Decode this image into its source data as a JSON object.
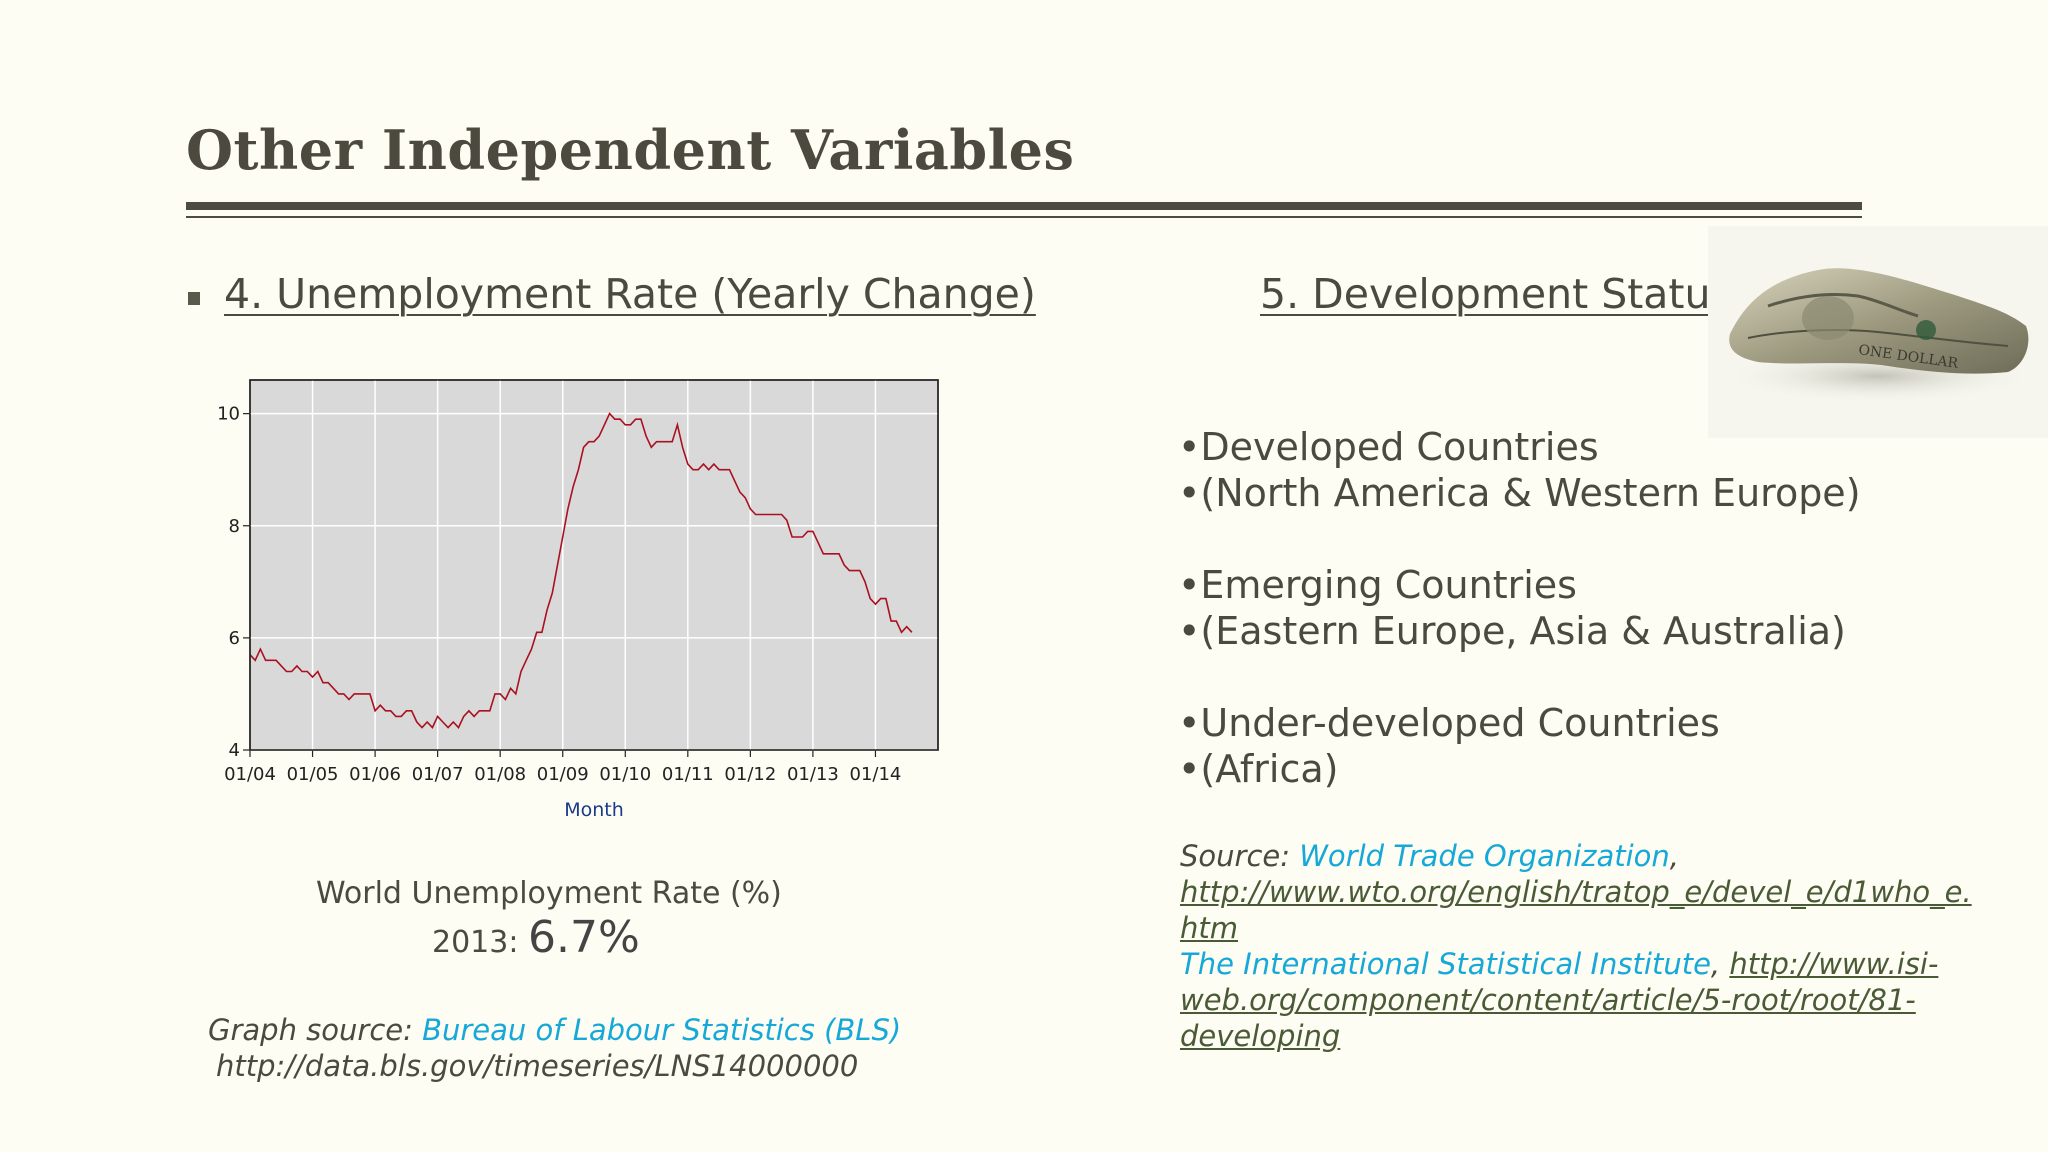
{
  "slide": {
    "title": "Other Independent Variables"
  },
  "left": {
    "heading": "4.  Unemployment Rate (Yearly Change)",
    "caption_line1": "World Unemployment Rate (%)",
    "caption_year": "2013: ",
    "caption_value": "6.7%",
    "source_label": "Graph source: ",
    "source_link": "Bureau of Labour Statistics (BLS)",
    "source_url": "http://data.bls.gov/timeseries/LNS14000000"
  },
  "right": {
    "heading": "5.  Development Status",
    "items": [
      "•Developed Countries",
      "•(North America & Western Europe)",
      "•Emerging Countries",
      "•(Eastern Europe, Asia & Australia)",
      "•Under-developed Countries",
      "•(Africa)"
    ],
    "source_label": "Source: ",
    "source_link1": "World Trade Organization",
    "source_sep": ",",
    "source_url1": "http://www.wto.org/english/tratop_e/devel_e/d1who_e.htm",
    "source_link2": "The International Statistical Institute",
    "source_sep2": ", ",
    "source_url2": "http://www.isi-web.org/component/content/article/5-root/root/81-developing",
    "image_icon": "crumpled-dollar-bill-image"
  },
  "chart_data": {
    "type": "line",
    "xlabel": "Month",
    "ylim": [
      4,
      10.6
    ],
    "yticks": [
      4,
      6,
      8,
      10
    ],
    "xticks": [
      "01/04",
      "01/05",
      "01/06",
      "01/07",
      "01/08",
      "01/09",
      "01/10",
      "01/11",
      "01/12",
      "01/13",
      "01/14"
    ],
    "grid": true,
    "color": "#aa1020",
    "x_start": "01/04",
    "months_per_tick": 12,
    "values": [
      5.7,
      5.6,
      5.8,
      5.6,
      5.6,
      5.6,
      5.5,
      5.4,
      5.4,
      5.5,
      5.4,
      5.4,
      5.3,
      5.4,
      5.2,
      5.2,
      5.1,
      5.0,
      5.0,
      4.9,
      5.0,
      5.0,
      5.0,
      5.0,
      4.7,
      4.8,
      4.7,
      4.7,
      4.6,
      4.6,
      4.7,
      4.7,
      4.5,
      4.4,
      4.5,
      4.4,
      4.6,
      4.5,
      4.4,
      4.5,
      4.4,
      4.6,
      4.7,
      4.6,
      4.7,
      4.7,
      4.7,
      5.0,
      5.0,
      4.9,
      5.1,
      5.0,
      5.4,
      5.6,
      5.8,
      6.1,
      6.1,
      6.5,
      6.8,
      7.3,
      7.8,
      8.3,
      8.7,
      9.0,
      9.4,
      9.5,
      9.5,
      9.6,
      9.8,
      10.0,
      9.9,
      9.9,
      9.8,
      9.8,
      9.9,
      9.9,
      9.6,
      9.4,
      9.5,
      9.5,
      9.5,
      9.5,
      9.8,
      9.4,
      9.1,
      9.0,
      9.0,
      9.1,
      9.0,
      9.1,
      9.0,
      9.0,
      9.0,
      8.8,
      8.6,
      8.5,
      8.3,
      8.2,
      8.2,
      8.2,
      8.2,
      8.2,
      8.2,
      8.1,
      7.8,
      7.8,
      7.8,
      7.9,
      7.9,
      7.7,
      7.5,
      7.5,
      7.5,
      7.5,
      7.3,
      7.2,
      7.2,
      7.2,
      7.0,
      6.7,
      6.6,
      6.7,
      6.7,
      6.3,
      6.3,
      6.1,
      6.2,
      6.1
    ]
  }
}
